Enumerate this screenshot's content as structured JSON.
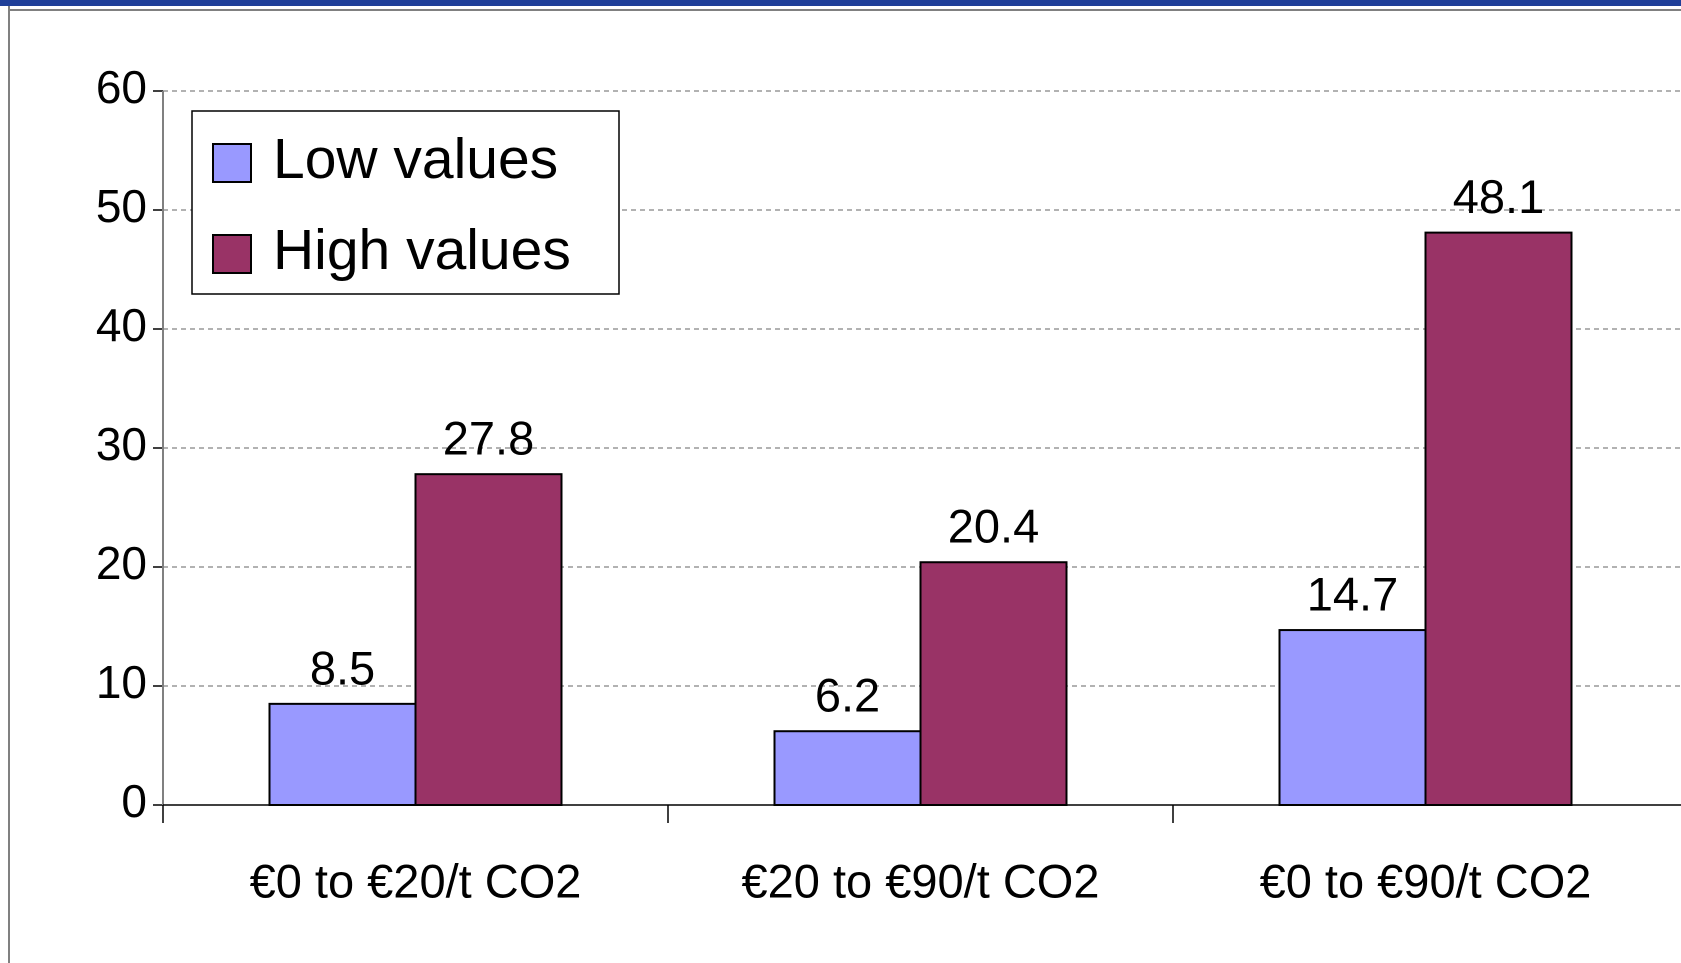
{
  "chart_data": {
    "type": "bar",
    "categories": [
      "€0 to €20/t CO2",
      "€20 to €90/t CO2",
      "€0 to €90/t CO2"
    ],
    "series": [
      {
        "name": "Low values",
        "color": "#9999ff",
        "values": [
          8.5,
          6.2,
          14.7
        ]
      },
      {
        "name": "High values",
        "color": "#993366",
        "values": [
          27.8,
          20.4,
          48.1
        ]
      }
    ],
    "ylim": [
      0,
      60
    ],
    "yticks": [
      0,
      10,
      20,
      30,
      40,
      50,
      60
    ],
    "grid": true,
    "legend": "upper left"
  }
}
